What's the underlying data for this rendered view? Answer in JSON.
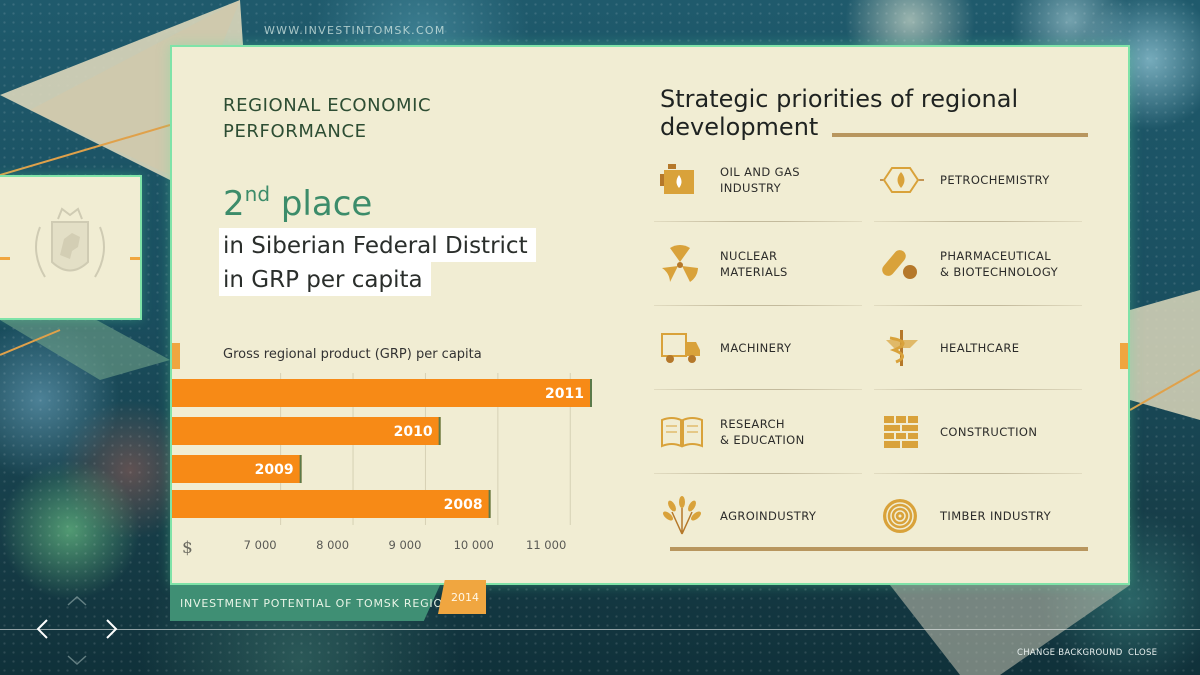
{
  "site_url": "WWW.INVESTINTOMSK.COM",
  "left": {
    "title_line1": "REGIONAL ECONOMIC",
    "title_line2": "PERFORMANCE",
    "place_number": "2",
    "place_suffix": "nd",
    "place_word": "place",
    "place_line1": "in Siberian Federal District",
    "place_line2": "in GRP per capita"
  },
  "chart_data": {
    "type": "bar",
    "orientation": "horizontal",
    "title": "Gross regional product (GRP) per capita",
    "categories": [
      "2011",
      "2010",
      "2009",
      "2008"
    ],
    "values": [
      11300,
      9210,
      7290,
      9900
    ],
    "currency_symbol": "$",
    "x_ticks": [
      "7 000",
      "8 000",
      "9 000",
      "10 000",
      "11 000"
    ],
    "x_tick_values": [
      7000,
      8000,
      9000,
      10000,
      11000
    ],
    "xlim": [
      5500,
      11300
    ],
    "bar_color": "#f78a16",
    "grid": true
  },
  "right": {
    "title_line1": "Strategic priorities of regional",
    "title_line2": "development",
    "sectors": [
      {
        "label": "OIL AND GAS\nINDUSTRY",
        "icon": "oil-gas-icon"
      },
      {
        "label": "PETROCHEMISTRY",
        "icon": "petrochemistry-icon"
      },
      {
        "label": "NUCLEAR\nMATERIALS",
        "icon": "nuclear-icon"
      },
      {
        "label": "PHARMACEUTICAL\n& BIOTECHNOLOGY",
        "icon": "pills-icon"
      },
      {
        "label": "MACHINERY",
        "icon": "truck-icon"
      },
      {
        "label": "HEALTHCARE",
        "icon": "caduceus-icon"
      },
      {
        "label": "RESEARCH\n& EDUCATION",
        "icon": "book-icon"
      },
      {
        "label": "CONSTRUCTION",
        "icon": "brick-wall-icon"
      },
      {
        "label": "AGROINDUSTRY",
        "icon": "wheat-icon"
      },
      {
        "label": "TIMBER INDUSTRY",
        "icon": "tree-rings-icon"
      }
    ]
  },
  "footer": {
    "text": "INVESTMENT POTENTIAL OF TOMSK REGION",
    "year": "2014",
    "change_background": "CHANGE BACKGROUND",
    "close": "CLOSE"
  },
  "colors": {
    "card_bg": "#f1edd3",
    "accent_orange": "#f78a16",
    "accent_green": "#3c8c6a",
    "gold": "#b8965e",
    "icon_gold": "#d9a23a"
  }
}
